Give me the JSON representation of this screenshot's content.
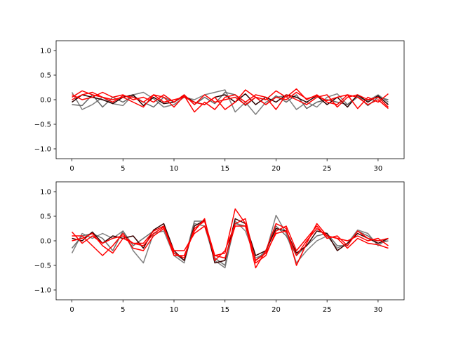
{
  "chart_data": [
    {
      "type": "line",
      "title": "",
      "xlabel": "",
      "ylabel": "",
      "xlim": [
        -1.55,
        32.55
      ],
      "ylim": [
        -1.2,
        1.2
      ],
      "xticks": [
        0,
        5,
        10,
        15,
        20,
        25,
        30
      ],
      "yticks": [
        -1.0,
        -0.5,
        0.0,
        0.5,
        1.0
      ],
      "xtick_labels": [
        "0",
        "5",
        "10",
        "15",
        "20",
        "25",
        "30"
      ],
      "ytick_labels": [
        "−1.0",
        "−0.5",
        "0.0",
        "0.5",
        "1.0"
      ],
      "grid": false,
      "legend": "none",
      "x": [
        0,
        1,
        2,
        3,
        4,
        5,
        6,
        7,
        8,
        9,
        10,
        11,
        12,
        13,
        14,
        15,
        16,
        17,
        18,
        19,
        20,
        21,
        22,
        23,
        24,
        25,
        26,
        27,
        28,
        29,
        30,
        31
      ],
      "series": [
        {
          "color": "#808080",
          "values": [
            0.15,
            -0.2,
            -0.1,
            0.05,
            -0.08,
            -0.12,
            0.1,
            0.15,
            0.02,
            -0.15,
            -0.1,
            0.05,
            0.0,
            0.1,
            0.15,
            0.2,
            -0.25,
            -0.05,
            -0.3,
            -0.05,
            0.05,
            0.08,
            -0.2,
            -0.05,
            -0.15,
            0.05,
            0.12,
            -0.1,
            0.05,
            -0.02,
            0.1,
            -0.05
          ]
        },
        {
          "color": "#666666",
          "values": [
            -0.1,
            -0.12,
            0.1,
            -0.15,
            0.05,
            -0.05,
            0.08,
            -0.05,
            -0.15,
            0.05,
            -0.05,
            0.1,
            -0.1,
            0.05,
            -0.08,
            0.15,
            0.1,
            -0.12,
            0.05,
            -0.1,
            0.08,
            -0.05,
            0.1,
            -0.18,
            -0.05,
            0.0,
            -0.05,
            -0.1,
            0.08,
            -0.12,
            0.05,
            0.0
          ]
        },
        {
          "color": "#2a0000",
          "values": [
            -0.05,
            0.1,
            0.05,
            0.0,
            -0.08,
            0.05,
            0.1,
            -0.12,
            0.05,
            -0.08,
            -0.05,
            0.08,
            -0.05,
            -0.1,
            0.05,
            0.1,
            -0.05,
            0.12,
            -0.1,
            0.05,
            -0.05,
            0.1,
            0.05,
            -0.05,
            0.08,
            -0.1,
            0.05,
            -0.15,
            0.1,
            -0.05,
            0.08,
            -0.1
          ]
        },
        {
          "color": "#ff0000",
          "values": [
            0.05,
            0.18,
            0.1,
            0.05,
            0.0,
            0.05,
            -0.05,
            -0.15,
            0.1,
            -0.05,
            0.0,
            0.05,
            -0.05,
            -0.1,
            0.05,
            -0.2,
            -0.05,
            0.2,
            0.05,
            -0.1,
            0.05,
            0.0,
            0.15,
            0.02,
            0.08,
            -0.02,
            0.05,
            0.1,
            -0.18,
            0.05,
            -0.05,
            0.12
          ]
        },
        {
          "color": "#ff0000",
          "values": [
            0.0,
            0.1,
            0.15,
            0.05,
            -0.05,
            0.08,
            0.05,
            -0.05,
            0.1,
            0.05,
            -0.15,
            0.08,
            -0.25,
            -0.05,
            -0.2,
            0.05,
            0.1,
            -0.05,
            0.1,
            0.05,
            -0.2,
            0.1,
            0.0,
            -0.1,
            0.05,
            0.1,
            -0.15,
            0.05,
            0.1,
            0.0,
            0.05,
            -0.15
          ]
        },
        {
          "color": "#ff0000",
          "values": [
            0.1,
            0.0,
            0.05,
            0.15,
            0.05,
            0.1,
            0.0,
            0.05,
            -0.05,
            0.1,
            -0.05,
            0.1,
            -0.1,
            0.1,
            -0.05,
            0.0,
            0.05,
            -0.1,
            0.05,
            0.0,
            0.18,
            0.05,
            0.22,
            0.0,
            0.1,
            -0.05,
            -0.1,
            0.1,
            0.05,
            -0.1,
            0.0,
            -0.18
          ]
        }
      ]
    },
    {
      "type": "line",
      "title": "",
      "xlabel": "",
      "ylabel": "",
      "xlim": [
        -1.55,
        32.55
      ],
      "ylim": [
        -1.2,
        1.2
      ],
      "xticks": [
        0,
        5,
        10,
        15,
        20,
        25,
        30
      ],
      "yticks": [
        -1.0,
        -0.5,
        0.0,
        0.5,
        1.0
      ],
      "xtick_labels": [
        "0",
        "5",
        "10",
        "15",
        "20",
        "25",
        "30"
      ],
      "ytick_labels": [
        "−1.0",
        "−0.5",
        "0.0",
        "0.5",
        "1.0"
      ],
      "grid": false,
      "legend": "none",
      "x": [
        0,
        1,
        2,
        3,
        4,
        5,
        6,
        7,
        8,
        9,
        10,
        11,
        12,
        13,
        14,
        15,
        16,
        17,
        18,
        19,
        20,
        21,
        22,
        23,
        24,
        25,
        26,
        27,
        28,
        29,
        30,
        31
      ],
      "series": [
        {
          "color": "#808080",
          "values": [
            -0.25,
            0.15,
            0.05,
            0.15,
            0.05,
            0.2,
            -0.2,
            -0.45,
            0.15,
            0.2,
            -0.3,
            -0.45,
            0.35,
            0.3,
            -0.4,
            -0.55,
            0.4,
            0.2,
            -0.35,
            -0.25,
            0.52,
            0.15,
            -0.45,
            -0.2,
            0.0,
            0.1,
            -0.15,
            -0.05,
            0.22,
            0.15,
            -0.1,
            0.05
          ]
        },
        {
          "color": "#6e6e6e",
          "values": [
            -0.15,
            0.1,
            0.15,
            0.05,
            -0.2,
            0.2,
            -0.1,
            0.05,
            0.2,
            0.3,
            -0.25,
            -0.4,
            0.4,
            0.4,
            -0.35,
            -0.5,
            0.35,
            0.3,
            -0.4,
            -0.2,
            0.3,
            0.1,
            -0.3,
            -0.1,
            0.1,
            0.15,
            -0.1,
            -0.1,
            0.2,
            0.1,
            -0.05,
            0.0
          ]
        },
        {
          "color": "#3a0000",
          "values": [
            0.05,
            0.0,
            0.18,
            -0.05,
            0.1,
            0.05,
            0.1,
            -0.15,
            0.22,
            0.35,
            -0.2,
            -0.4,
            0.3,
            0.42,
            -0.45,
            -0.4,
            0.45,
            0.35,
            -0.3,
            -0.2,
            0.25,
            0.2,
            -0.25,
            -0.1,
            0.2,
            0.15,
            -0.2,
            -0.05,
            0.15,
            0.05,
            -0.05,
            0.05
          ]
        },
        {
          "color": "#ff0000",
          "values": [
            0.18,
            -0.05,
            0.1,
            -0.05,
            0.05,
            0.1,
            -0.05,
            -0.05,
            0.2,
            0.3,
            -0.25,
            -0.35,
            0.25,
            0.4,
            -0.3,
            -0.25,
            0.65,
            0.35,
            -0.55,
            -0.2,
            0.35,
            0.25,
            -0.5,
            -0.05,
            0.35,
            0.1,
            0.05,
            0.0,
            0.1,
            0.0,
            0.05,
            -0.1
          ]
        },
        {
          "color": "#ff0000",
          "values": [
            0.0,
            0.05,
            0.15,
            -0.1,
            -0.25,
            0.05,
            -0.05,
            -0.1,
            0.15,
            0.28,
            -0.3,
            -0.3,
            0.2,
            0.45,
            -0.4,
            -0.2,
            0.35,
            0.45,
            -0.45,
            -0.3,
            0.2,
            0.3,
            -0.2,
            0.05,
            0.3,
            0.05,
            0.1,
            -0.1,
            0.2,
            0.05,
            0.0,
            0.05
          ]
        },
        {
          "color": "#ff0000",
          "values": [
            0.1,
            0.1,
            -0.1,
            -0.3,
            -0.1,
            0.15,
            -0.15,
            -0.2,
            0.1,
            0.25,
            -0.2,
            -0.2,
            0.15,
            0.3,
            -0.3,
            -0.35,
            0.3,
            0.3,
            -0.4,
            -0.25,
            0.15,
            0.2,
            -0.3,
            0.0,
            0.25,
            0.1,
            0.05,
            -0.15,
            0.05,
            -0.05,
            -0.08,
            -0.15
          ]
        }
      ]
    }
  ]
}
